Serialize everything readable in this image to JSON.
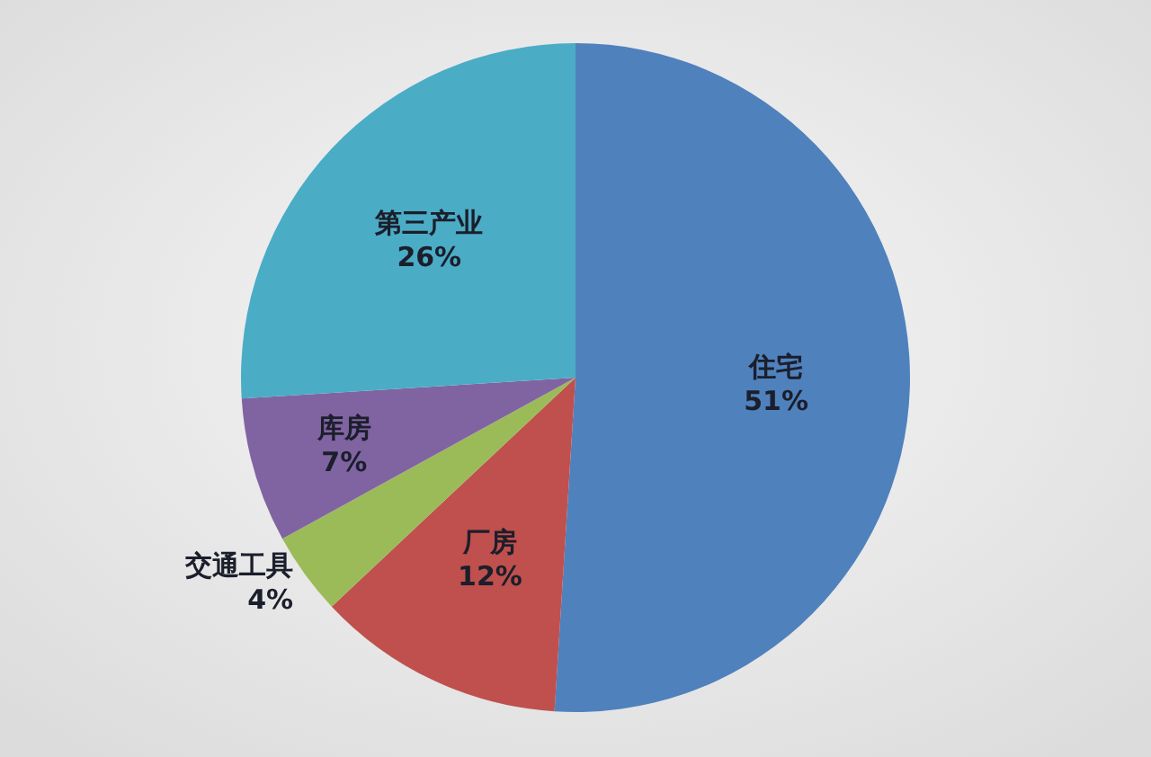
{
  "chart_data": {
    "type": "pie",
    "categories": [
      "住宅",
      "厂房",
      "交通工具",
      "库房",
      "第三产业"
    ],
    "values": [
      51,
      12,
      4,
      7,
      26
    ],
    "colors": [
      "#4f81bd",
      "#c0504d",
      "#9bbb59",
      "#8064a2",
      "#4bacc6"
    ],
    "value_labels": [
      "51%",
      "12%",
      "4%",
      "7%",
      "26%"
    ]
  }
}
